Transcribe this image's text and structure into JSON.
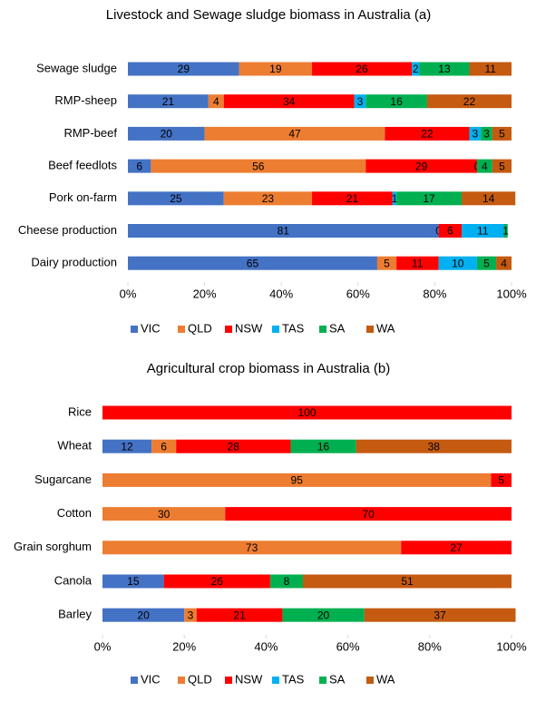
{
  "chart_data": [
    {
      "type": "bar",
      "orientation": "horizontal",
      "stacked": true,
      "title": "Livestock and Sewage sludge biomass  in Australia (a)",
      "categories": [
        "Sewage sludge",
        "RMP-sheep",
        "RMP-beef",
        "Beef feedlots",
        "Pork on-farm",
        "Cheese production",
        "Dairy production"
      ],
      "series": [
        {
          "name": "VIC",
          "color": "#4472c4",
          "values": [
            29,
            21,
            20,
            6,
            25,
            81,
            65
          ]
        },
        {
          "name": "QLD",
          "color": "#ed7d31",
          "values": [
            19,
            4,
            47,
            56,
            23,
            0,
            5
          ]
        },
        {
          "name": "NSW",
          "color": "#ff0000",
          "values": [
            26,
            34,
            22,
            29,
            21,
            6,
            11
          ]
        },
        {
          "name": "TAS",
          "color": "#00b0f0",
          "values": [
            2,
            3,
            3,
            0,
            1,
            11,
            10
          ]
        },
        {
          "name": "SA",
          "color": "#00b050",
          "values": [
            13,
            16,
            3,
            4,
            17,
            1,
            5
          ]
        },
        {
          "name": "WA",
          "color": "#c55a11",
          "values": [
            11,
            22,
            5,
            5,
            14,
            null,
            4
          ]
        }
      ],
      "xlim": [
        0,
        100
      ],
      "xticks": [
        {
          "value": 0,
          "label": "0%"
        },
        {
          "value": 20,
          "label": "20%"
        },
        {
          "value": 40,
          "label": "40%"
        },
        {
          "value": 60,
          "label": "60%"
        },
        {
          "value": 80,
          "label": "80%"
        },
        {
          "value": 100,
          "label": "100%"
        }
      ],
      "legend": "bottom"
    },
    {
      "type": "bar",
      "orientation": "horizontal",
      "stacked": true,
      "title": "Agricultural crop biomass in Australia (b)",
      "categories": [
        "Rice",
        "Wheat",
        "Sugarcane",
        "Cotton",
        "Grain sorghum",
        "Canola",
        "Barley"
      ],
      "series": [
        {
          "name": "VIC",
          "color": "#4472c4",
          "values": [
            null,
            12,
            null,
            null,
            null,
            15,
            20
          ]
        },
        {
          "name": "QLD",
          "color": "#ed7d31",
          "values": [
            null,
            6,
            95,
            30,
            73,
            null,
            3
          ]
        },
        {
          "name": "NSW",
          "color": "#ff0000",
          "values": [
            100,
            28,
            5,
            70,
            27,
            26,
            21
          ]
        },
        {
          "name": "TAS",
          "color": "#00b0f0",
          "values": [
            null,
            null,
            null,
            null,
            null,
            null,
            null
          ]
        },
        {
          "name": "SA",
          "color": "#00b050",
          "values": [
            null,
            16,
            null,
            null,
            null,
            8,
            20
          ]
        },
        {
          "name": "WA",
          "color": "#c55a11",
          "values": [
            null,
            38,
            null,
            null,
            null,
            51,
            37
          ]
        }
      ],
      "xlim": [
        0,
        100
      ],
      "xticks": [
        {
          "value": 0,
          "label": "0%"
        },
        {
          "value": 20,
          "label": "20%"
        },
        {
          "value": 40,
          "label": "40%"
        },
        {
          "value": 60,
          "label": "60%"
        },
        {
          "value": 80,
          "label": "80%"
        },
        {
          "value": 100,
          "label": "100%"
        }
      ],
      "legend": "bottom"
    }
  ]
}
